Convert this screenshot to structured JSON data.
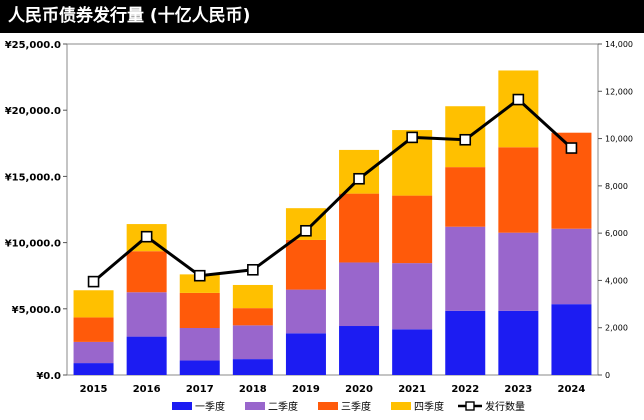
{
  "title": "人民币债券发行量 (十亿人民币)",
  "chart_data": {
    "type": "bar",
    "stacked": true,
    "title": "人民币债券发行量 (十亿人民币)",
    "categories": [
      "2015",
      "2016",
      "2017",
      "2018",
      "2019",
      "2020",
      "2021",
      "2022",
      "2023",
      "2024"
    ],
    "y_left": {
      "range": [
        0,
        25000
      ],
      "ticks": [
        0,
        5000,
        10000,
        15000,
        20000,
        25000
      ],
      "tick_labels": [
        "¥0.0",
        "¥5,000.0",
        "¥10,000.0",
        "¥15,000.0",
        "¥20,000.0",
        "¥25,000.0"
      ]
    },
    "y_right": {
      "range": [
        0,
        14000
      ],
      "ticks": [
        0,
        2000,
        4000,
        6000,
        8000,
        10000,
        12000,
        14000
      ],
      "tick_labels": [
        "0",
        "2,000",
        "4,000",
        "6,000",
        "8,000",
        "10,000",
        "12,000",
        "14,000"
      ]
    },
    "series": [
      {
        "name": "一季度",
        "color": "#1c1cf2",
        "values": [
          900,
          2900,
          1100,
          1200,
          3150,
          3700,
          3450,
          4850,
          4850,
          5350
        ]
      },
      {
        "name": "二季度",
        "color": "#9966cc",
        "values": [
          1600,
          3350,
          2450,
          2550,
          3300,
          4800,
          5000,
          6350,
          5900,
          5700
        ]
      },
      {
        "name": "三季度",
        "color": "#ff5a0a",
        "values": [
          1850,
          3100,
          2650,
          1300,
          3750,
          5200,
          5100,
          4500,
          6450,
          7250
        ]
      },
      {
        "name": "四季度",
        "color": "#ffc000",
        "values": [
          2050,
          2050,
          1400,
          1750,
          2400,
          3300,
          4950,
          4600,
          5800,
          0
        ]
      }
    ],
    "line_series": {
      "name": "发行数量",
      "axis": "right",
      "color": "#000000",
      "values": [
        3950,
        5850,
        4200,
        4450,
        6100,
        8300,
        10050,
        9950,
        11650,
        9600
      ]
    },
    "legend": [
      "一季度",
      "二季度",
      "三季度",
      "四季度",
      "发行数量"
    ],
    "legend_position": "bottom"
  }
}
